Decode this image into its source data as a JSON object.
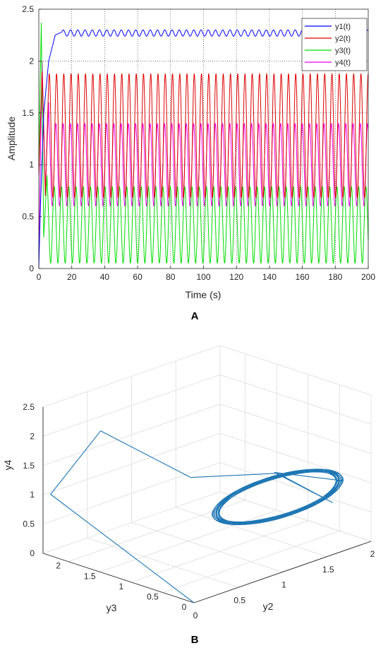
{
  "chart_data": [
    {
      "type": "line",
      "panel_label": "A",
      "xlabel": "Time (s)",
      "ylabel": "Amplitude",
      "xlim": [
        0,
        200
      ],
      "ylim": [
        0,
        2.5
      ],
      "xticks": [
        "0",
        "20",
        "40",
        "60",
        "80",
        "100",
        "120",
        "140",
        "160",
        "180",
        "200"
      ],
      "yticks": [
        "0",
        "0.5",
        "1",
        "1.5",
        "2",
        "2.5"
      ],
      "grid": "dotted",
      "legend": "top-right",
      "series": [
        {
          "name": "y1(t)",
          "color": "#0000ff",
          "transient": [
            [
              0,
              0.0
            ],
            [
              1,
              0.6
            ],
            [
              3,
              1.5
            ],
            [
              6,
              2.0
            ],
            [
              10,
              2.25
            ],
            [
              14,
              2.28
            ]
          ],
          "mean": 2.27,
          "amplitude": 0.03,
          "period": 4.4
        },
        {
          "name": "y2(t)",
          "color": "#dd0000",
          "transient": [
            [
              0,
              0.9
            ],
            [
              2,
              1.9
            ],
            [
              4,
              0.7
            ],
            [
              6,
              1.8
            ]
          ],
          "mean": 1.28,
          "amplitude": 0.6,
          "period": 4.4
        },
        {
          "name": "y3(t)",
          "color": "#00dd00",
          "transient": [
            [
              0,
              1.0
            ],
            [
              1.5,
              2.37
            ],
            [
              3,
              0.3
            ],
            [
              5,
              0.9
            ]
          ],
          "mean": 0.42,
          "amplitude": 0.37,
          "period": 4.4
        },
        {
          "name": "y4(t)",
          "color": "#ee00ee",
          "transient": [
            [
              0,
              0.1
            ],
            [
              2,
              2.0
            ],
            [
              4,
              0.75
            ],
            [
              6,
              1.6
            ]
          ],
          "mean": 1.0,
          "amplitude": 0.4,
          "period": 4.4
        }
      ]
    },
    {
      "type": "line3d",
      "panel_label": "B",
      "xlabel": "y2",
      "ylabel": "y3",
      "zlabel": "y4",
      "xlim": [
        0,
        2
      ],
      "ylim": [
        0,
        2.5
      ],
      "zlim": [
        0,
        2.5
      ],
      "xticks": [
        "0",
        "0.5",
        "1",
        "1.5",
        "2"
      ],
      "yticks": [
        "0",
        "0.5",
        "1",
        "1.5",
        "2"
      ],
      "zticks": [
        "0",
        "0.5",
        "1",
        "1.5",
        "2",
        "2.5"
      ],
      "grid": "on",
      "color": "#1f77b4",
      "path": [
        [
          0.0,
          0.0,
          0.0
        ],
        [
          0.05,
          2.35,
          1.0
        ],
        [
          0.65,
          2.4,
          1.75
        ],
        [
          1.1,
          1.6,
          1.0
        ],
        [
          1.55,
          0.85,
          1.1
        ],
        [
          1.85,
          0.4,
          0.6
        ],
        [
          1.35,
          0.62,
          1.3
        ]
      ],
      "attractor": {
        "center": [
          1.3,
          0.5,
          0.95
        ],
        "ry2": 0.5,
        "ry3": 0.35,
        "ry4": 0.35
      }
    }
  ]
}
